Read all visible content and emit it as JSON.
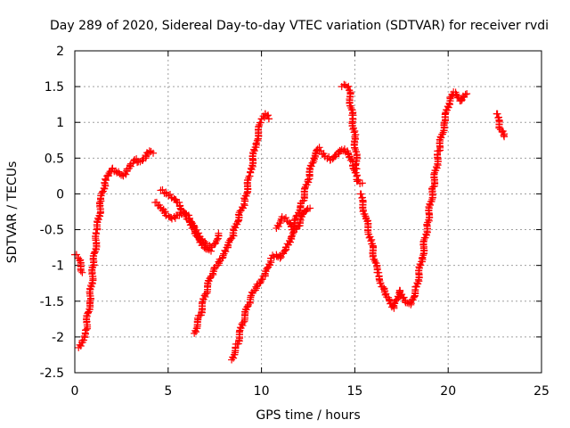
{
  "chart_data": {
    "type": "scatter",
    "title": "Day 289 of 2020, Sidereal Day-to-day VTEC variation (SDTVAR) for receiver rvdi",
    "xlabel": "GPS time / hours",
    "ylabel": "SDTVAR / TECUs",
    "xlim": [
      0,
      25
    ],
    "ylim": [
      -2.5,
      2
    ],
    "xticks": [
      0,
      5,
      10,
      15,
      20,
      25
    ],
    "xtick_labels": [
      "0",
      "5",
      "10",
      "15",
      "20",
      "25"
    ],
    "yticks": [
      -2.5,
      -2,
      -1.5,
      -1,
      -0.5,
      0,
      0.5,
      1,
      1.5,
      2
    ],
    "ytick_labels": [
      "-2.5",
      "-2",
      "-1.5",
      "-1",
      "-0.5",
      "0",
      "0.5",
      "1",
      "1.5",
      "2"
    ],
    "grid": true,
    "marker": "+",
    "color": "#ff0000",
    "series": [
      {
        "name": "s1",
        "x": [
          0.0,
          0.2,
          0.4
        ],
        "y": [
          -0.85,
          -0.9,
          -1.1
        ]
      },
      {
        "name": "s2",
        "x": [
          0.2,
          0.4,
          0.6,
          0.8,
          1.0,
          1.2,
          1.4,
          1.6,
          1.8,
          2.0,
          2.2,
          2.4,
          2.6,
          2.8,
          3.0,
          3.2,
          3.4,
          3.6,
          3.8,
          4.0,
          4.2
        ],
        "y": [
          -2.15,
          -2.05,
          -1.9,
          -1.5,
          -1.0,
          -0.5,
          -0.1,
          0.15,
          0.25,
          0.35,
          0.32,
          0.28,
          0.25,
          0.35,
          0.42,
          0.48,
          0.45,
          0.47,
          0.5,
          0.6,
          0.57
        ]
      },
      {
        "name": "s3",
        "x": [
          4.3,
          4.6,
          4.9,
          5.2,
          5.5,
          5.8,
          6.1,
          6.4,
          6.7,
          7.0,
          7.3,
          7.5,
          7.7
        ],
        "y": [
          -0.12,
          -0.2,
          -0.3,
          -0.35,
          -0.3,
          -0.25,
          -0.3,
          -0.45,
          -0.6,
          -0.7,
          -0.75,
          -0.7,
          -0.55
        ]
      },
      {
        "name": "s4",
        "x": [
          4.6,
          4.9,
          5.2,
          5.5,
          5.8,
          6.1,
          6.4,
          6.7,
          7.0,
          7.3
        ],
        "y": [
          0.05,
          0.0,
          -0.05,
          -0.12,
          -0.25,
          -0.35,
          -0.5,
          -0.65,
          -0.75,
          -0.8
        ]
      },
      {
        "name": "s5",
        "x": [
          6.4,
          6.7,
          7.0,
          7.3,
          7.6,
          7.9,
          8.2,
          8.5,
          8.8,
          9.1,
          9.4,
          9.7,
          10.0,
          10.2,
          10.4
        ],
        "y": [
          -1.95,
          -1.7,
          -1.4,
          -1.15,
          -1.0,
          -0.9,
          -0.75,
          -0.55,
          -0.3,
          -0.1,
          0.3,
          0.7,
          1.05,
          1.12,
          1.05
        ]
      },
      {
        "name": "s6",
        "x": [
          8.4,
          8.7,
          9.0,
          9.3,
          9.6,
          9.9,
          10.2,
          10.5,
          10.8,
          11.0,
          11.3,
          11.6,
          11.9,
          12.2,
          12.5,
          12.8,
          13.1
        ],
        "y": [
          -2.32,
          -2.1,
          -1.8,
          -1.55,
          -1.35,
          -1.25,
          -1.15,
          -0.9,
          -0.85,
          -0.9,
          -0.75,
          -0.6,
          -0.3,
          -0.1,
          0.2,
          0.5,
          0.65
        ]
      },
      {
        "name": "s7",
        "x": [
          10.8,
          11.1,
          11.4,
          11.7,
          12.0,
          12.3,
          12.6
        ],
        "y": [
          -0.48,
          -0.32,
          -0.38,
          -0.5,
          -0.45,
          -0.25,
          -0.2
        ]
      },
      {
        "name": "s8",
        "x": [
          13.1,
          13.4,
          13.7,
          14.0,
          14.3,
          14.6,
          14.9,
          15.1,
          15.4
        ],
        "y": [
          0.6,
          0.52,
          0.48,
          0.55,
          0.62,
          0.6,
          0.45,
          0.2,
          0.15
        ]
      },
      {
        "name": "s9",
        "x": [
          14.3,
          14.5,
          14.7,
          14.85,
          15.0,
          15.1
        ],
        "y": [
          1.5,
          1.52,
          1.45,
          1.1,
          0.8,
          0.35
        ]
      },
      {
        "name": "s10",
        "x": [
          15.3,
          15.6,
          15.9,
          16.2,
          16.5,
          16.8,
          17.1,
          17.4,
          17.7,
          18.0,
          18.3,
          18.6,
          18.9,
          19.2,
          19.5,
          19.8,
          20.1,
          20.4,
          20.7,
          21.0
        ],
        "y": [
          0.0,
          -0.35,
          -0.7,
          -1.1,
          -1.3,
          -1.45,
          -1.6,
          -1.35,
          -1.5,
          -1.55,
          -1.3,
          -0.9,
          -0.4,
          0.1,
          0.6,
          1.0,
          1.35,
          1.42,
          1.3,
          1.4
        ]
      },
      {
        "name": "s11",
        "x": [
          22.6,
          22.8,
          23.0
        ],
        "y": [
          1.12,
          0.9,
          0.8
        ]
      }
    ]
  }
}
